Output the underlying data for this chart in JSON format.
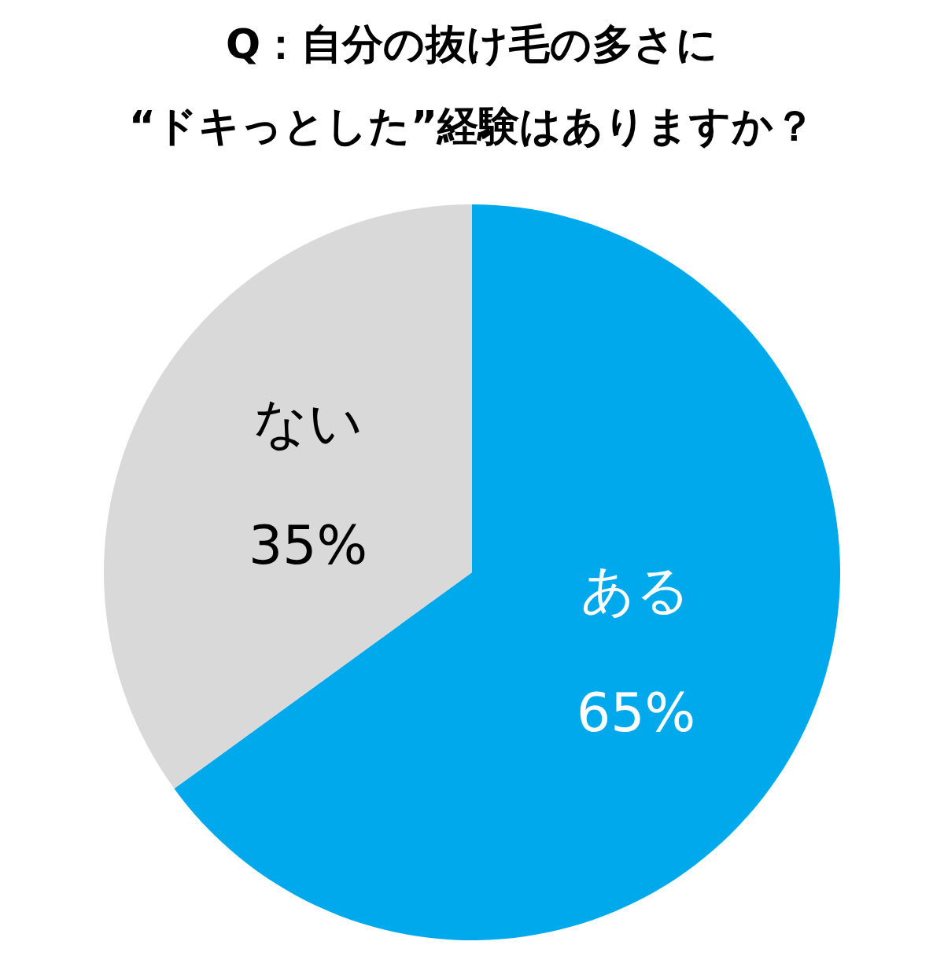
{
  "chart_data": {
    "type": "pie",
    "title": "Q：自分の抜け毛の多さに\n“ドキっとした”経験はありますか？",
    "categories": [
      "ある",
      "ない"
    ],
    "values": [
      65,
      35
    ],
    "colors": [
      "#00a9ec",
      "#d9d9d9"
    ],
    "value_labels": [
      "65%",
      "35%"
    ],
    "legend": false
  }
}
